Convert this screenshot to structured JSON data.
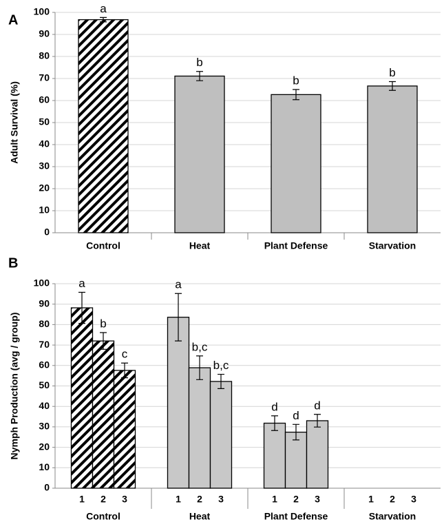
{
  "chart_data": [
    {
      "type": "bar",
      "panel_label": "A",
      "y_label": "Adult Survival (%)",
      "categories": [
        "Control",
        "Heat",
        "Plant Defense",
        "Starvation"
      ],
      "values": [
        96.7,
        71.1,
        62.7,
        66.6
      ],
      "errors": [
        1.0,
        2.1,
        2.3,
        2.0
      ],
      "letters": [
        "a",
        "b",
        "b",
        "b"
      ],
      "hatched": [
        true,
        false,
        false,
        false
      ],
      "color": "#bfbfbf",
      "ylim": [
        0,
        100
      ],
      "yticks": [
        0,
        10,
        20,
        30,
        40,
        50,
        60,
        70,
        80,
        90,
        100
      ],
      "grid": true
    },
    {
      "type": "grouped_bar",
      "panel_label": "B",
      "y_label": "Nymph Production (avg / group)",
      "color": "#c8c8c8",
      "groups": [
        {
          "name": "Control",
          "hatched": true,
          "categories": [
            "1",
            "2",
            "3"
          ],
          "values": [
            88.2,
            72.0,
            57.6
          ],
          "errors": [
            7.6,
            4.1,
            3.6
          ],
          "letters": [
            "a",
            "b",
            "c"
          ]
        },
        {
          "name": "Heat",
          "hatched": false,
          "categories": [
            "1",
            "2",
            "3"
          ],
          "values": [
            83.6,
            58.9,
            52.2
          ],
          "errors": [
            11.6,
            5.8,
            3.5
          ],
          "letters": [
            "a",
            "b,c",
            "b,c"
          ]
        },
        {
          "name": "Plant Defense",
          "hatched": false,
          "categories": [
            "1",
            "2",
            "3"
          ],
          "values": [
            31.8,
            27.4,
            33.0
          ],
          "errors": [
            3.6,
            3.8,
            3.1
          ],
          "letters": [
            "d",
            "d",
            "d"
          ]
        },
        {
          "name": "Starvation",
          "hatched": false,
          "categories": [
            "1",
            "2",
            "3"
          ],
          "values": [
            null,
            null,
            null
          ],
          "errors": [
            null,
            null,
            null
          ],
          "letters": [
            null,
            null,
            null
          ]
        }
      ],
      "ylim": [
        0,
        100
      ],
      "yticks": [
        0,
        10,
        20,
        30,
        40,
        50,
        60,
        70,
        80,
        90,
        100
      ],
      "grid": true
    }
  ]
}
